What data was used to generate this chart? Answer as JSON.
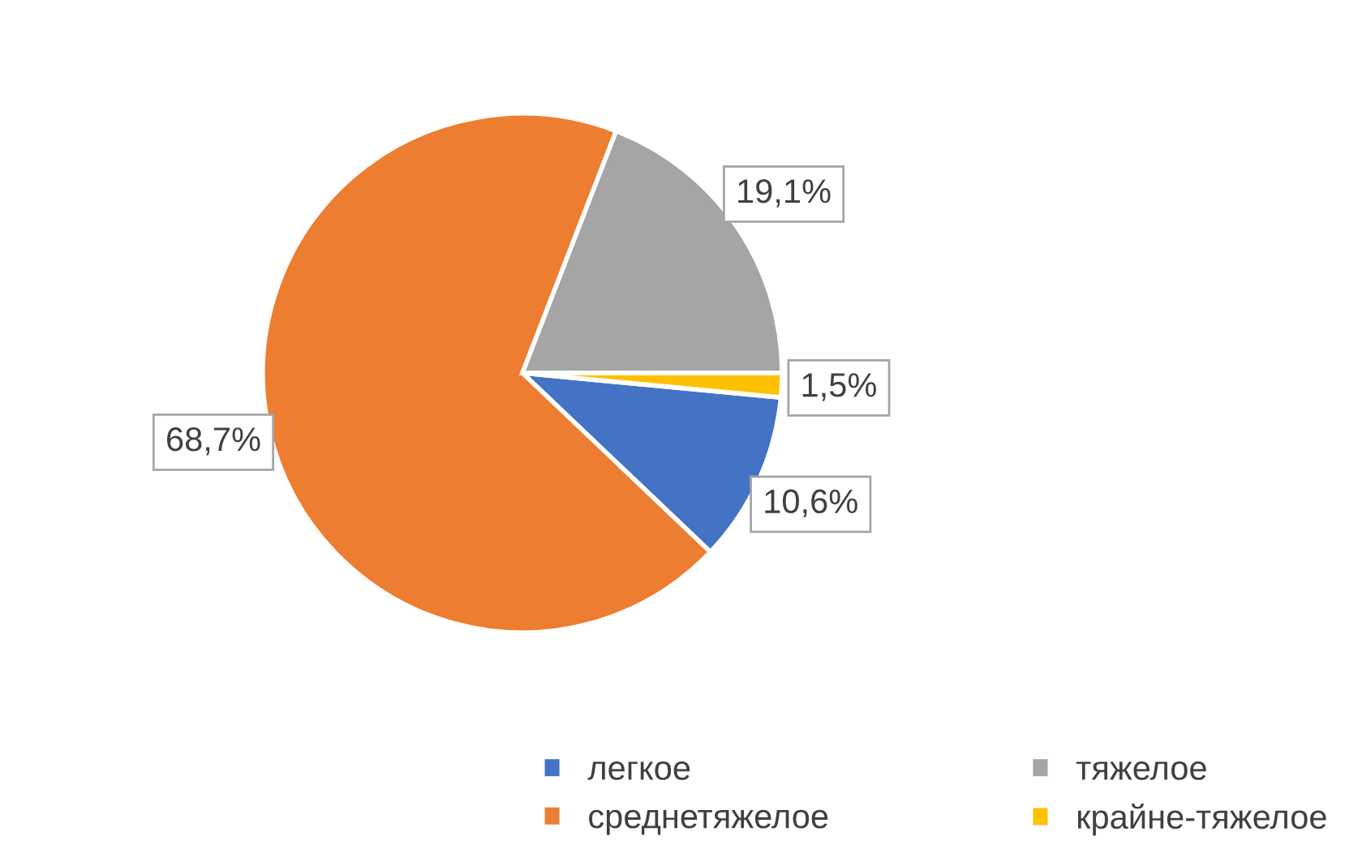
{
  "chart_data": {
    "type": "pie",
    "categories": [
      "легкое",
      "среднетяжелое",
      "тяжелое",
      "крайне-тяжелое"
    ],
    "values": [
      10.6,
      68.7,
      19.1,
      1.5
    ],
    "colors": [
      "#4472c4",
      "#ed7d31",
      "#a5a5a5",
      "#ffc000"
    ],
    "value_labels": [
      "10,6%",
      "68,7%",
      "19,1%",
      "1,5%"
    ],
    "legend": "bottom right"
  }
}
